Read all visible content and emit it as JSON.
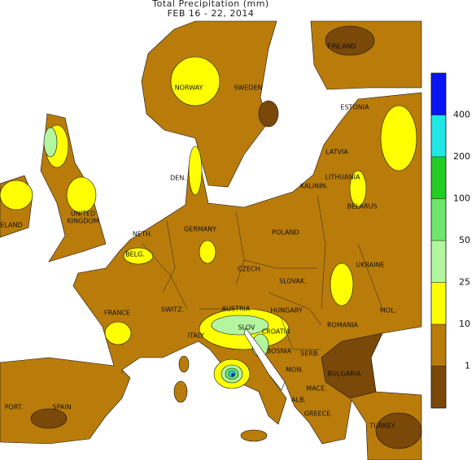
{
  "header": {
    "title": "Total Precipitation (mm)",
    "subtitle": "FEB 16 - 22, 2014"
  },
  "legend": {
    "ticks": [
      1,
      10,
      25,
      50,
      100,
      200,
      400
    ],
    "colors": [
      "#7a4808",
      "#b97c0a",
      "#ffff00",
      "#b4f5a0",
      "#6ee66e",
      "#22cc22",
      "#22e6e6",
      "#0a14f0"
    ]
  },
  "labels": [
    "FINLAND",
    "NORWAY",
    "SWEDEN",
    "ESTONIA",
    "LATVIA",
    "LITHUANIA",
    "DEN.",
    "KALININ.",
    "BELARUS",
    "UNITED",
    "KINGDOM",
    "ELAND",
    "NETH.",
    "GERMANY",
    "POLAND",
    "BELG.",
    "CZECH.",
    "SLOVAK.",
    "UKRAINE",
    "FRANCE",
    "SWITZ.",
    "AUSTRIA",
    "HUNGARY",
    "MOL.",
    "SLOV",
    "CROATIA",
    "ROMANIA",
    "ITALY",
    "BOSNIA",
    "SERB.",
    "MON.",
    "BULGARIA",
    "MACE.",
    "ALB.",
    "GREECE",
    "PORT.",
    "SPAIN",
    "TURKEY"
  ]
}
